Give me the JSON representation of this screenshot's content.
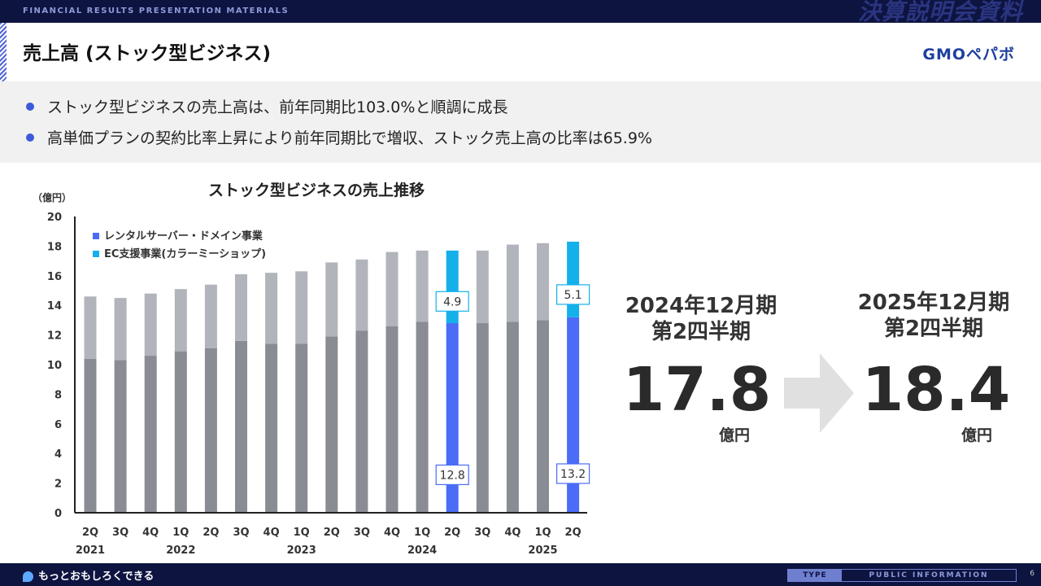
{
  "header": {
    "tag_en": "FINANCIAL RESULTS PRESENTATION MATERIALS",
    "tag_jp": "決算説明会資料",
    "title": "売上高 (ストック型ビジネス)",
    "logo": "GMOペパボ"
  },
  "bullets": [
    "ストック型ビジネスの売上高は、前年同期比103.0%と順調に成長",
    "高単価プランの契約比率上昇により前年同期比で増収、ストック売上高の比率は65.9%"
  ],
  "colors": {
    "rental_base": "#8a8c93",
    "ec_base": "#b2b4bb",
    "rental_highlight": "#4a6cf7",
    "ec_highlight": "#14b0ea"
  },
  "chart_data": {
    "type": "bar",
    "stacked": true,
    "title": "ストック型ビジネスの売上推移",
    "ylabel": "（億円）",
    "ylim": [
      0,
      20
    ],
    "yticks": [
      0,
      2,
      4,
      6,
      8,
      10,
      12,
      14,
      16,
      18,
      20
    ],
    "categories": [
      "2Q",
      "3Q",
      "4Q",
      "1Q",
      "2Q",
      "3Q",
      "4Q",
      "1Q",
      "2Q",
      "3Q",
      "4Q",
      "1Q",
      "2Q",
      "3Q",
      "4Q",
      "1Q",
      "2Q"
    ],
    "year_labels": [
      {
        "index": 0,
        "label": "2021"
      },
      {
        "index": 3,
        "label": "2022"
      },
      {
        "index": 7,
        "label": "2023"
      },
      {
        "index": 11,
        "label": "2024"
      },
      {
        "index": 15,
        "label": "2025"
      }
    ],
    "series": [
      {
        "name": "レンタルサーバー・ドメイン事業",
        "values": [
          10.4,
          10.3,
          10.6,
          10.9,
          11.1,
          11.6,
          11.4,
          11.4,
          11.9,
          12.3,
          12.6,
          12.9,
          12.8,
          12.8,
          12.9,
          13.0,
          13.2
        ]
      },
      {
        "name": "EC支援事業(カラーミーショップ)",
        "values": [
          4.2,
          4.2,
          4.2,
          4.2,
          4.3,
          4.5,
          4.8,
          4.9,
          5.0,
          4.8,
          5.0,
          4.8,
          4.9,
          4.9,
          5.2,
          5.2,
          5.1
        ]
      }
    ],
    "highlight_indices": [
      12,
      16
    ],
    "data_labels": [
      {
        "index": 12,
        "series": 0,
        "text": "12.8"
      },
      {
        "index": 12,
        "series": 1,
        "text": "4.9"
      },
      {
        "index": 16,
        "series": 0,
        "text": "13.2"
      },
      {
        "index": 16,
        "series": 1,
        "text": "5.1"
      }
    ]
  },
  "comparison": {
    "from_period_line1": "2024年12月期",
    "from_period_line2": "第2四半期",
    "from_value": "17.8",
    "to_period_line1": "2025年12月期",
    "to_period_line2": "第2四半期",
    "to_value": "18.4",
    "unit": "億円"
  },
  "footer": {
    "slogan": "もっとおもしろくできる",
    "type_label": "TYPE",
    "type_value": "PUBLIC INFORMATION",
    "page": "6"
  }
}
